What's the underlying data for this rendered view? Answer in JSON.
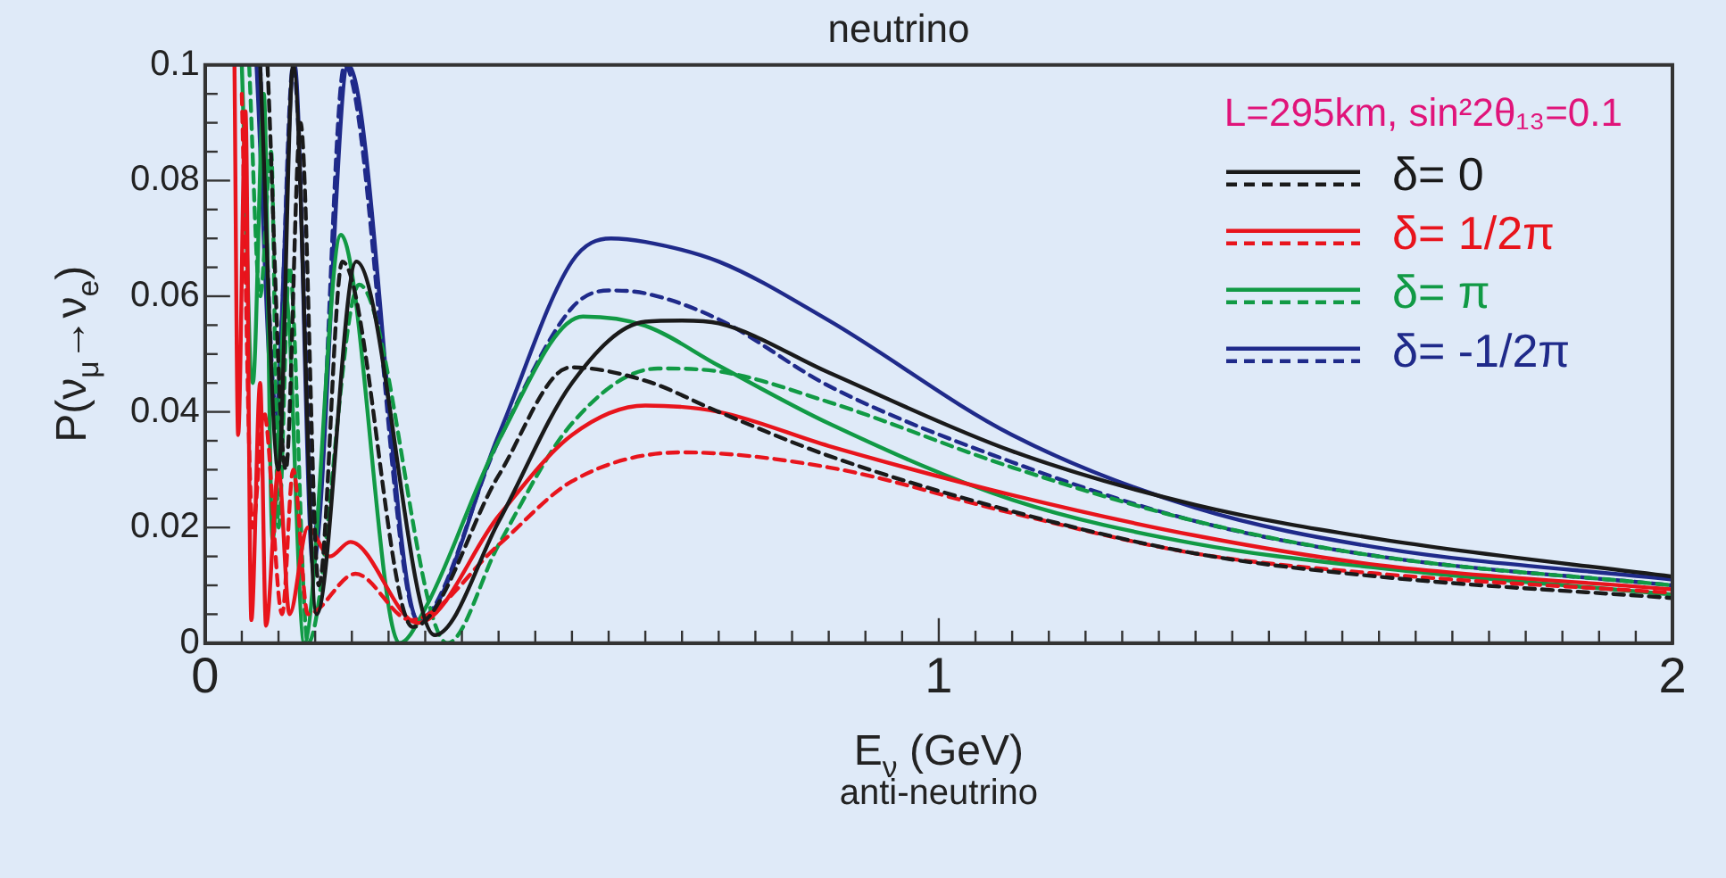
{
  "chart_data": {
    "type": "line",
    "title": "neutrino",
    "xlabel": "E$_{ν}$ (GeV)",
    "ylabel": "P(ν$_{μ}$→ν$_{e}$)",
    "annotations": [
      "L=295km, sin²2θ₁₃=0.1",
      "anti-neutrino"
    ],
    "xlim": [
      0,
      2
    ],
    "ylim": [
      0,
      0.1
    ],
    "xticks": [
      0,
      {
        "value": 0.05,
        "label": null
      },
      {
        "value": 0.1,
        "label": null
      },
      {
        "value": 0.15,
        "label": null
      },
      {
        "value": 0.2,
        "label": null
      },
      {
        "value": 0.25,
        "label": null
      },
      {
        "value": 0.3,
        "label": null
      },
      {
        "value": 0.35,
        "label": null
      },
      {
        "value": 0.4,
        "label": null
      },
      {
        "value": 0.45,
        "label": null
      },
      {
        "value": 0.5,
        "label": null
      },
      {
        "value": 0.55,
        "label": null
      },
      {
        "value": 0.6,
        "label": null
      },
      {
        "value": 0.65,
        "label": null
      },
      {
        "value": 0.7,
        "label": null
      },
      {
        "value": 0.75,
        "label": null
      },
      {
        "value": 0.8,
        "label": null
      },
      {
        "value": 0.85,
        "label": null
      },
      {
        "value": 0.9,
        "label": null
      },
      {
        "value": 0.95,
        "label": null
      },
      1,
      {
        "value": 1.05,
        "label": null
      },
      {
        "value": 1.1,
        "label": null
      },
      {
        "value": 1.15,
        "label": null
      },
      {
        "value": 1.2,
        "label": null
      },
      {
        "value": 1.25,
        "label": null
      },
      {
        "value": 1.3,
        "label": null
      },
      {
        "value": 1.35,
        "label": null
      },
      {
        "value": 1.4,
        "label": null
      },
      {
        "value": 1.45,
        "label": null
      },
      {
        "value": 1.5,
        "label": null
      },
      {
        "value": 1.55,
        "label": null
      },
      {
        "value": 1.6,
        "label": null
      },
      {
        "value": 1.65,
        "label": null
      },
      {
        "value": 1.7,
        "label": null
      },
      {
        "value": 1.75,
        "label": null
      },
      {
        "value": 1.8,
        "label": null
      },
      {
        "value": 1.85,
        "label": null
      },
      {
        "value": 1.9,
        "label": null
      },
      {
        "value": 1.95,
        "label": null
      },
      2
    ],
    "yticks": [
      0,
      {
        "value": 0.005,
        "label": null
      },
      {
        "value": 0.01,
        "label": null
      },
      {
        "value": 0.015,
        "label": null
      },
      0.02,
      {
        "value": 0.025,
        "label": null
      },
      {
        "value": 0.03,
        "label": null
      },
      {
        "value": 0.035,
        "label": null
      },
      0.04,
      {
        "value": 0.045,
        "label": null
      },
      {
        "value": 0.05,
        "label": null
      },
      {
        "value": 0.055,
        "label": null
      },
      0.06,
      {
        "value": 0.065,
        "label": null
      },
      {
        "value": 0.07,
        "label": null
      },
      {
        "value": 0.075,
        "label": null
      },
      0.08,
      {
        "value": 0.085,
        "label": null
      },
      {
        "value": 0.09,
        "label": null
      },
      {
        "value": 0.095,
        "label": null
      },
      0.1
    ],
    "legend": "top right",
    "marker": "none",
    "series": [
      {
        "name": "δ= 0",
        "color": "#1a1a1a",
        "line_style": "solid",
        "x": [
          0.075,
          0.1,
          0.12,
          0.152,
          0.206,
          0.313,
          0.4,
          0.5,
          0.6,
          0.65,
          0.7,
          0.85,
          1.1,
          1.35,
          1.6,
          2.0
        ],
        "values": [
          0.1,
          0.03,
          0.1,
          0.005,
          0.066,
          0.0014,
          0.021,
          0.045,
          0.0556,
          0.0558,
          0.0553,
          0.0468,
          0.0332,
          0.0239,
          0.018,
          0.0115
        ]
      },
      {
        "color": "#1a1a1a",
        "line_style": "dashed",
        "x": [
          0.085,
          0.11,
          0.13,
          0.155,
          0.187,
          0.283,
          0.4,
          0.498,
          0.6,
          0.7,
          0.85,
          1.1,
          1.35,
          1.6,
          2.0
        ],
        "values": [
          0.1,
          0.03,
          0.09,
          0.01,
          0.066,
          0.0028,
          0.029,
          0.0477,
          0.0454,
          0.04,
          0.0324,
          0.0228,
          0.0155,
          0.0115,
          0.0078
        ]
      },
      {
        "name": "δ= 1/2π",
        "color": "#e8141c",
        "line_style": "solid",
        "x": [
          0.04,
          0.045,
          0.055,
          0.063,
          0.075,
          0.083,
          0.1,
          0.115,
          0.14,
          0.17,
          0.198,
          0.29,
          0.4,
          0.5,
          0.6,
          0.7,
          0.85,
          1.1,
          1.35,
          1.6,
          2.0
        ],
        "values": [
          0.1,
          0.036,
          0.092,
          0.004,
          0.045,
          0.003,
          0.03,
          0.005,
          0.02,
          0.015,
          0.0175,
          0.0035,
          0.022,
          0.036,
          0.0411,
          0.04,
          0.0341,
          0.0256,
          0.0186,
          0.0135,
          0.0093
        ]
      },
      {
        "color": "#e8141c",
        "line_style": "dashed",
        "x": [
          0.05,
          0.065,
          0.08,
          0.105,
          0.12,
          0.14,
          0.205,
          0.28,
          0.4,
          0.5,
          0.65,
          0.85,
          1.1,
          1.35,
          1.6,
          2.0
        ],
        "values": [
          0.095,
          0.02,
          0.04,
          0.005,
          0.03,
          0.005,
          0.012,
          0.004,
          0.017,
          0.028,
          0.033,
          0.0304,
          0.0225,
          0.0155,
          0.012,
          0.0087
        ]
      },
      {
        "name": "δ= π",
        "color": "#119a45",
        "line_style": "solid",
        "x": [
          0.05,
          0.065,
          0.08,
          0.092,
          0.11,
          0.135,
          0.185,
          0.265,
          0.3,
          0.4,
          0.515,
          0.6,
          0.7,
          0.85,
          1.1,
          1.35,
          1.6,
          2.0
        ],
        "values": [
          0.1,
          0.045,
          0.095,
          0.018,
          0.06,
          0,
          0.0706,
          0,
          0.006,
          0.035,
          0.0565,
          0.0549,
          0.048,
          0.038,
          0.0248,
          0.0172,
          0.013,
          0.0084
        ]
      },
      {
        "color": "#119a45",
        "line_style": "dashed",
        "x": [
          0.06,
          0.075,
          0.09,
          0.1,
          0.115,
          0.14,
          0.21,
          0.33,
          0.4,
          0.5,
          0.617,
          0.7,
          0.85,
          1.1,
          1.35,
          1.6,
          2.0
        ],
        "values": [
          0.1,
          0.06,
          0.085,
          0.02,
          0.065,
          0,
          0.062,
          0,
          0.017,
          0.038,
          0.0475,
          0.047,
          0.0417,
          0.0304,
          0.0211,
          0.015,
          0.01
        ]
      },
      {
        "name": "δ= -1/2π",
        "color": "#1f2a8a",
        "line_style": "solid",
        "x": [
          0.07,
          0.095,
          0.122,
          0.147,
          0.195,
          0.291,
          0.4,
          0.5,
          0.553,
          0.6,
          0.7,
          0.85,
          1.1,
          1.35,
          1.6,
          2.0
        ],
        "values": [
          0.1,
          0.039,
          0.1,
          0.0135,
          0.1,
          0.0037,
          0.036,
          0.066,
          0.07,
          0.0694,
          0.066,
          0.0558,
          0.036,
          0.0234,
          0.0165,
          0.011
        ]
      },
      {
        "color": "#1f2a8a",
        "line_style": "dashed",
        "x": [
          0.075,
          0.097,
          0.12,
          0.15,
          0.19,
          0.29,
          0.4,
          0.5,
          0.55,
          0.6,
          0.7,
          0.85,
          1.1,
          1.35,
          1.6,
          2.0
        ],
        "values": [
          0.1,
          0.04,
          0.1,
          0.02,
          0.1,
          0.004,
          0.035,
          0.058,
          0.061,
          0.0605,
          0.056,
          0.0445,
          0.0313,
          0.0211,
          0.015,
          0.01
        ]
      }
    ]
  }
}
